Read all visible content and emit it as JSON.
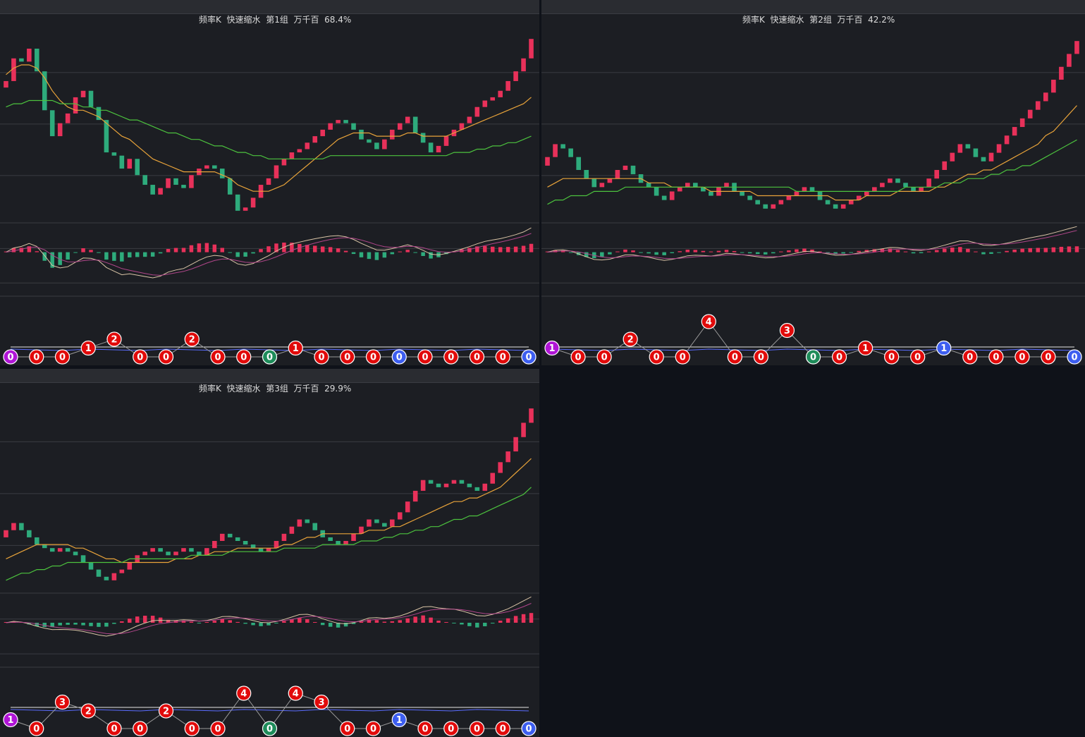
{
  "colors": {
    "up": "#e8315a",
    "down": "#2eab7c",
    "ma_fast": "#e8a33a",
    "ma_slow": "#4cc23e",
    "grid": "#3a3c42",
    "badge_red": "#e10a0a",
    "badge_green": "#1e8c5a",
    "badge_blue": "#3d5ef0",
    "badge_purple": "#b014d6"
  },
  "panels": [
    {
      "title_parts": [
        "频率K",
        "快速缩水",
        "第1组",
        "万千百",
        "68.4%"
      ],
      "chart_data": {
        "type": "candlestick",
        "closes": [
          70,
          77,
          76,
          80,
          73,
          61,
          53,
          57,
          60,
          65,
          67,
          62,
          58,
          48,
          47,
          43,
          46,
          41,
          38,
          35,
          37,
          40,
          38,
          37,
          41,
          43,
          44,
          43,
          40,
          35,
          30,
          31,
          34,
          38,
          40,
          44,
          46,
          48,
          49,
          51,
          53,
          55,
          57,
          58,
          57,
          55,
          52,
          51,
          49,
          52,
          55,
          57,
          59,
          54,
          51,
          48,
          50,
          53,
          55,
          57,
          59,
          62,
          64,
          65,
          67,
          70,
          73,
          77,
          83
        ],
        "ma_fast": [
          72,
          74,
          75,
          75,
          74,
          71,
          67,
          64,
          62,
          61,
          61,
          60,
          59,
          57,
          55,
          53,
          52,
          50,
          48,
          46,
          45,
          44,
          43,
          42,
          42,
          42,
          42,
          42,
          41,
          40,
          38,
          37,
          36,
          36,
          36,
          37,
          38,
          40,
          42,
          44,
          46,
          48,
          50,
          52,
          53,
          54,
          54,
          54,
          53,
          53,
          53,
          53,
          54,
          54,
          53,
          53,
          53,
          53,
          54,
          55,
          56,
          57,
          58,
          59,
          60,
          61,
          62,
          63,
          65
        ],
        "ma_slow": [
          62,
          63,
          63,
          64,
          64,
          64,
          64,
          63,
          63,
          63,
          62,
          62,
          61,
          61,
          60,
          59,
          58,
          58,
          57,
          56,
          55,
          54,
          54,
          53,
          52,
          52,
          51,
          50,
          50,
          49,
          48,
          48,
          47,
          47,
          46,
          46,
          46,
          46,
          46,
          46,
          46,
          46,
          47,
          47,
          47,
          47,
          47,
          47,
          47,
          47,
          47,
          47,
          47,
          47,
          47,
          47,
          47,
          47,
          48,
          48,
          48,
          49,
          49,
          50,
          50,
          51,
          51,
          52,
          53
        ]
      },
      "badges": [
        {
          "label": "0",
          "color": "purple",
          "level": 0
        },
        {
          "label": "0",
          "color": "red",
          "level": 0
        },
        {
          "label": "0",
          "color": "red",
          "level": 0
        },
        {
          "label": "1",
          "color": "red",
          "level": 1
        },
        {
          "label": "2",
          "color": "red",
          "level": 2
        },
        {
          "label": "0",
          "color": "red",
          "level": 0
        },
        {
          "label": "0",
          "color": "red",
          "level": 0
        },
        {
          "label": "2",
          "color": "red",
          "level": 2
        },
        {
          "label": "0",
          "color": "red",
          "level": 0
        },
        {
          "label": "0",
          "color": "red",
          "level": 0
        },
        {
          "label": "0",
          "color": "green",
          "level": 0
        },
        {
          "label": "1",
          "color": "red",
          "level": 1
        },
        {
          "label": "0",
          "color": "red",
          "level": 0
        },
        {
          "label": "0",
          "color": "red",
          "level": 0
        },
        {
          "label": "0",
          "color": "red",
          "level": 0
        },
        {
          "label": "0",
          "color": "blue",
          "level": 0
        },
        {
          "label": "0",
          "color": "red",
          "level": 0
        },
        {
          "label": "0",
          "color": "red",
          "level": 0
        },
        {
          "label": "0",
          "color": "red",
          "level": 0
        },
        {
          "label": "0",
          "color": "red",
          "level": 0
        },
        {
          "label": "0",
          "color": "blue",
          "level": 0
        }
      ]
    },
    {
      "title_parts": [
        "频率K",
        "快速缩水",
        "第2组",
        "万千百",
        "42.2%"
      ],
      "chart_data": {
        "type": "candlestick",
        "closes": [
          55,
          58,
          57,
          55,
          52,
          50,
          48,
          49,
          50,
          52,
          53,
          51,
          49,
          48,
          46,
          45,
          47,
          48,
          49,
          48,
          47,
          46,
          48,
          49,
          47,
          46,
          45,
          44,
          43,
          44,
          45,
          46,
          47,
          48,
          47,
          45,
          44,
          43,
          44,
          45,
          46,
          47,
          48,
          49,
          50,
          49,
          48,
          47,
          48,
          50,
          52,
          54,
          56,
          58,
          57,
          55,
          54,
          56,
          58,
          60,
          62,
          64,
          66,
          68,
          70,
          73,
          76,
          79,
          82
        ],
        "ma_fast": [
          48,
          49,
          50,
          50,
          50,
          50,
          50,
          50,
          50,
          50,
          50,
          50,
          50,
          49,
          49,
          49,
          48,
          48,
          48,
          48,
          48,
          47,
          47,
          47,
          47,
          47,
          47,
          46,
          46,
          46,
          46,
          46,
          46,
          46,
          46,
          46,
          46,
          45,
          45,
          45,
          45,
          46,
          46,
          46,
          46,
          47,
          47,
          47,
          47,
          47,
          48,
          48,
          49,
          50,
          51,
          51,
          52,
          52,
          53,
          54,
          55,
          56,
          57,
          58,
          60,
          61,
          63,
          65,
          67
        ],
        "ma_slow": [
          44,
          45,
          45,
          46,
          46,
          46,
          47,
          47,
          47,
          47,
          48,
          48,
          48,
          48,
          48,
          48,
          48,
          48,
          48,
          48,
          48,
          48,
          48,
          48,
          48,
          48,
          48,
          48,
          48,
          48,
          48,
          48,
          47,
          47,
          47,
          47,
          47,
          47,
          47,
          47,
          47,
          47,
          47,
          47,
          47,
          47,
          48,
          48,
          48,
          48,
          48,
          49,
          49,
          49,
          50,
          50,
          50,
          51,
          51,
          52,
          52,
          53,
          53,
          54,
          55,
          56,
          57,
          58,
          59
        ]
      },
      "badges": [
        {
          "label": "1",
          "color": "purple",
          "level": 1
        },
        {
          "label": "0",
          "color": "red",
          "level": 0
        },
        {
          "label": "0",
          "color": "red",
          "level": 0
        },
        {
          "label": "2",
          "color": "red",
          "level": 2
        },
        {
          "label": "0",
          "color": "red",
          "level": 0
        },
        {
          "label": "0",
          "color": "red",
          "level": 0
        },
        {
          "label": "4",
          "color": "red",
          "level": 4
        },
        {
          "label": "0",
          "color": "red",
          "level": 0
        },
        {
          "label": "0",
          "color": "red",
          "level": 0
        },
        {
          "label": "3",
          "color": "red",
          "level": 3
        },
        {
          "label": "0",
          "color": "green",
          "level": 0
        },
        {
          "label": "0",
          "color": "red",
          "level": 0
        },
        {
          "label": "1",
          "color": "red",
          "level": 1
        },
        {
          "label": "0",
          "color": "red",
          "level": 0
        },
        {
          "label": "0",
          "color": "red",
          "level": 0
        },
        {
          "label": "1",
          "color": "blue",
          "level": 1
        },
        {
          "label": "0",
          "color": "red",
          "level": 0
        },
        {
          "label": "0",
          "color": "red",
          "level": 0
        },
        {
          "label": "0",
          "color": "red",
          "level": 0
        },
        {
          "label": "0",
          "color": "red",
          "level": 0
        },
        {
          "label": "0",
          "color": "blue",
          "level": 0
        }
      ]
    },
    {
      "title_parts": [
        "频率K",
        "快速缩水",
        "第3组",
        "万千百",
        "29.9%"
      ],
      "chart_data": {
        "type": "candlestick",
        "closes": [
          50,
          52,
          50,
          48,
          46,
          45,
          44,
          45,
          44,
          43,
          41,
          39,
          37,
          36,
          38,
          39,
          41,
          43,
          44,
          45,
          44,
          43,
          44,
          45,
          44,
          43,
          45,
          47,
          49,
          48,
          47,
          46,
          45,
          44,
          45,
          47,
          49,
          51,
          53,
          52,
          50,
          48,
          47,
          46,
          47,
          49,
          51,
          53,
          52,
          51,
          53,
          55,
          58,
          61,
          64,
          63,
          62,
          63,
          64,
          63,
          62,
          61,
          63,
          66,
          69,
          72,
          76,
          80,
          84
        ],
        "ma_fast": [
          42,
          43,
          44,
          45,
          46,
          46,
          46,
          46,
          46,
          45,
          45,
          44,
          43,
          42,
          42,
          41,
          41,
          41,
          41,
          41,
          41,
          41,
          42,
          42,
          42,
          43,
          43,
          44,
          44,
          44,
          45,
          45,
          45,
          45,
          45,
          45,
          46,
          46,
          47,
          48,
          48,
          49,
          49,
          49,
          49,
          49,
          49,
          50,
          50,
          50,
          51,
          51,
          52,
          53,
          54,
          55,
          56,
          57,
          58,
          58,
          59,
          59,
          60,
          61,
          62,
          64,
          66,
          68,
          70
        ],
        "ma_slow": [
          36,
          37,
          38,
          38,
          39,
          39,
          40,
          40,
          41,
          41,
          41,
          41,
          41,
          41,
          41,
          41,
          42,
          42,
          42,
          42,
          42,
          42,
          42,
          42,
          43,
          43,
          43,
          43,
          43,
          44,
          44,
          44,
          44,
          44,
          44,
          44,
          45,
          45,
          45,
          45,
          45,
          46,
          46,
          46,
          46,
          46,
          47,
          47,
          47,
          48,
          48,
          49,
          49,
          50,
          50,
          51,
          51,
          52,
          53,
          53,
          54,
          54,
          55,
          56,
          57,
          58,
          59,
          60,
          62
        ]
      },
      "badges": [
        {
          "label": "1",
          "color": "purple",
          "level": 1
        },
        {
          "label": "0",
          "color": "red",
          "level": 0
        },
        {
          "label": "3",
          "color": "red",
          "level": 3
        },
        {
          "label": "2",
          "color": "red",
          "level": 2
        },
        {
          "label": "0",
          "color": "red",
          "level": 0
        },
        {
          "label": "0",
          "color": "red",
          "level": 0
        },
        {
          "label": "2",
          "color": "red",
          "level": 2
        },
        {
          "label": "0",
          "color": "red",
          "level": 0
        },
        {
          "label": "0",
          "color": "red",
          "level": 0
        },
        {
          "label": "4",
          "color": "red",
          "level": 4
        },
        {
          "label": "0",
          "color": "green",
          "level": 0
        },
        {
          "label": "4",
          "color": "red",
          "level": 4
        },
        {
          "label": "3",
          "color": "red",
          "level": 3
        },
        {
          "label": "0",
          "color": "red",
          "level": 0
        },
        {
          "label": "0",
          "color": "red",
          "level": 0
        },
        {
          "label": "1",
          "color": "blue",
          "level": 1
        },
        {
          "label": "0",
          "color": "red",
          "level": 0
        },
        {
          "label": "0",
          "color": "red",
          "level": 0
        },
        {
          "label": "0",
          "color": "red",
          "level": 0
        },
        {
          "label": "0",
          "color": "red",
          "level": 0
        },
        {
          "label": "0",
          "color": "blue",
          "level": 0
        }
      ]
    }
  ]
}
